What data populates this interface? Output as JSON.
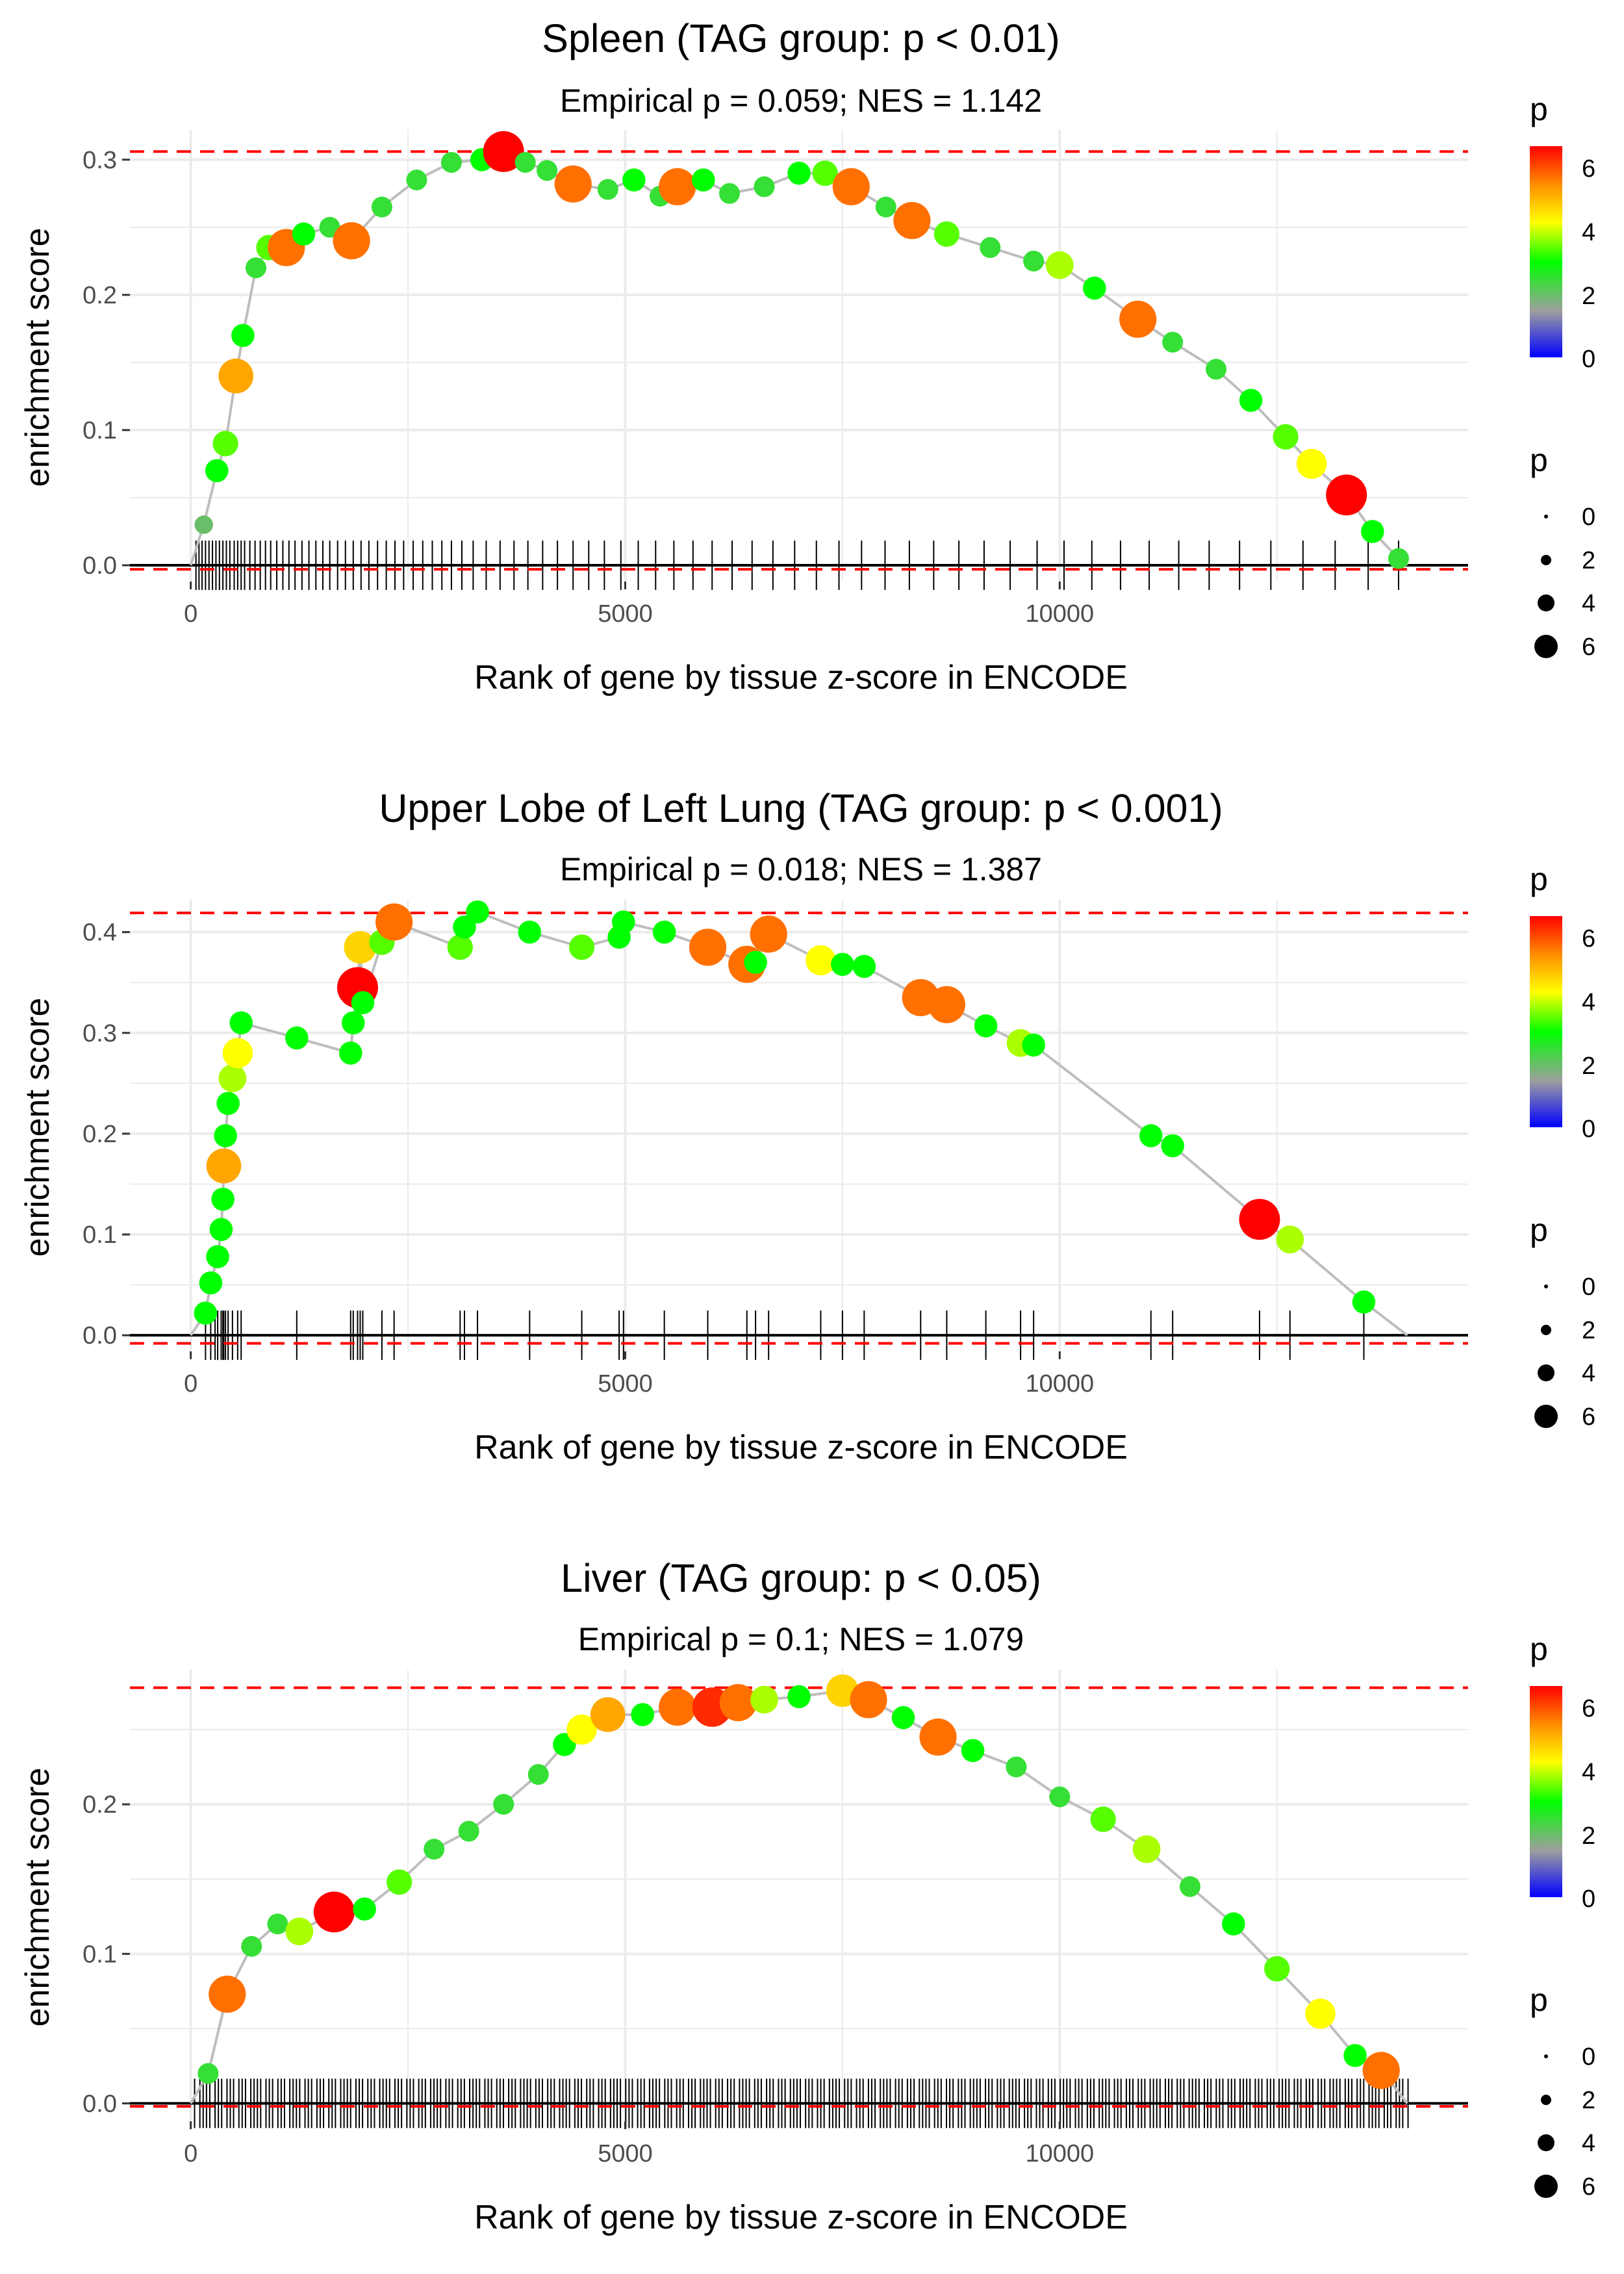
{
  "chart_data": [
    {
      "type": "line",
      "title": "Spleen (TAG group: p < 0.01)",
      "subtitle": "Empirical p = 0.059; NES = 1.142",
      "xlabel": "Rank of gene by tissue z-score in ENCODE",
      "ylabel": "enrichment score",
      "xlim": [
        -700,
        14700
      ],
      "ylim": [
        -0.012,
        0.322
      ],
      "xticks": [
        {
          "value": 0,
          "label": "0"
        },
        {
          "value": 5000,
          "label": "5000"
        },
        {
          "value": 10000,
          "label": "10000"
        }
      ],
      "yticks": [
        {
          "value": 0.0,
          "label": "0.0"
        },
        {
          "value": 0.1,
          "label": "0.1"
        },
        {
          "value": 0.2,
          "label": "0.2"
        },
        {
          "value": 0.3,
          "label": "0.3"
        }
      ],
      "max_es": 0.306,
      "min_es": -0.003,
      "n_genes": 14000,
      "points": [
        [
          150,
          0.03,
          2.0
        ],
        [
          300,
          0.07,
          3.0
        ],
        [
          400,
          0.09,
          3.5
        ],
        [
          520,
          0.14,
          5.5
        ],
        [
          600,
          0.17,
          3.0
        ],
        [
          750,
          0.22,
          2.5
        ],
        [
          900,
          0.235,
          3.5
        ],
        [
          1100,
          0.235,
          6.0
        ],
        [
          1300,
          0.245,
          3.0
        ],
        [
          1600,
          0.25,
          2.5
        ],
        [
          1850,
          0.24,
          6.0
        ],
        [
          2200,
          0.265,
          2.5
        ],
        [
          2600,
          0.285,
          2.5
        ],
        [
          3000,
          0.298,
          2.5
        ],
        [
          3350,
          0.3,
          3.0
        ],
        [
          3600,
          0.306,
          6.8
        ],
        [
          3850,
          0.298,
          2.5
        ],
        [
          4100,
          0.292,
          2.5
        ],
        [
          4400,
          0.282,
          6.0
        ],
        [
          4800,
          0.278,
          2.5
        ],
        [
          5100,
          0.285,
          3.0
        ],
        [
          5400,
          0.273,
          2.5
        ],
        [
          5600,
          0.28,
          6.0
        ],
        [
          5900,
          0.285,
          3.0
        ],
        [
          6200,
          0.275,
          2.5
        ],
        [
          6600,
          0.28,
          2.5
        ],
        [
          7000,
          0.29,
          3.0
        ],
        [
          7300,
          0.29,
          3.5
        ],
        [
          7600,
          0.28,
          6.0
        ],
        [
          8000,
          0.265,
          2.5
        ],
        [
          8300,
          0.255,
          6.0
        ],
        [
          8700,
          0.245,
          3.5
        ],
        [
          9200,
          0.235,
          2.5
        ],
        [
          9700,
          0.225,
          2.5
        ],
        [
          10000,
          0.222,
          4.0
        ],
        [
          10400,
          0.205,
          3.0
        ],
        [
          10900,
          0.182,
          6.0
        ],
        [
          11300,
          0.165,
          2.5
        ],
        [
          11800,
          0.145,
          2.5
        ],
        [
          12200,
          0.122,
          3.0
        ],
        [
          12600,
          0.095,
          3.5
        ],
        [
          12900,
          0.075,
          4.5
        ],
        [
          13300,
          0.052,
          6.8
        ],
        [
          13600,
          0.025,
          3.0
        ],
        [
          13900,
          0.005,
          2.5
        ]
      ],
      "hits": [
        60,
        95,
        130,
        170,
        210,
        250,
        290,
        330,
        370,
        410,
        450,
        500,
        540,
        580,
        620,
        680,
        740,
        800,
        860,
        920,
        990,
        1060,
        1130,
        1200,
        1280,
        1360,
        1440,
        1520,
        1600,
        1690,
        1780,
        1870,
        1960,
        2050,
        2150,
        2250,
        2350,
        2450,
        2560,
        2670,
        2780,
        2890,
        3000,
        3120,
        3250,
        3400,
        3560,
        3720,
        3880,
        4050,
        4220,
        4400,
        4580,
        4760,
        4950,
        5150,
        5350,
        5560,
        5780,
        6000,
        6230,
        6460,
        6700,
        6950,
        7200,
        7460,
        7720,
        7990,
        8270,
        8550,
        8840,
        9130,
        9430,
        9740,
        10050,
        10370,
        10700,
        11030,
        11370,
        11720,
        12070,
        12430,
        12800,
        13170,
        13550,
        13900
      ]
    },
    {
      "type": "line",
      "title": "Upper Lobe of Left Lung (TAG group: p < 0.001)",
      "subtitle": "Empirical p = 0.018; NES = 1.387",
      "xlabel": "Rank of gene by tissue z-score in ENCODE",
      "ylabel": "enrichment score",
      "xlim": [
        -700,
        14700
      ],
      "ylim": [
        -0.016,
        0.432
      ],
      "xticks": [
        {
          "value": 0,
          "label": "0"
        },
        {
          "value": 5000,
          "label": "5000"
        },
        {
          "value": 10000,
          "label": "10000"
        }
      ],
      "yticks": [
        {
          "value": 0.0,
          "label": "0.0"
        },
        {
          "value": 0.1,
          "label": "0.1"
        },
        {
          "value": 0.2,
          "label": "0.2"
        },
        {
          "value": 0.3,
          "label": "0.3"
        },
        {
          "value": 0.4,
          "label": "0.4"
        }
      ],
      "max_es": 0.419,
      "min_es": -0.008,
      "n_genes": 14000,
      "points": [
        [
          170,
          0.022,
          3.0
        ],
        [
          230,
          0.052,
          3.0
        ],
        [
          310,
          0.078,
          3.0
        ],
        [
          350,
          0.105,
          3.0
        ],
        [
          370,
          0.135,
          3.0
        ],
        [
          380,
          0.168,
          5.5
        ],
        [
          400,
          0.198,
          3.0
        ],
        [
          430,
          0.23,
          3.0
        ],
        [
          480,
          0.255,
          4.0
        ],
        [
          540,
          0.28,
          4.5
        ],
        [
          580,
          0.31,
          3.0
        ],
        [
          1220,
          0.295,
          3.0
        ],
        [
          1840,
          0.28,
          3.0
        ],
        [
          1870,
          0.31,
          3.0
        ],
        [
          1920,
          0.345,
          6.8
        ],
        [
          1950,
          0.385,
          5.0
        ],
        [
          1980,
          0.33,
          3.0
        ],
        [
          2200,
          0.39,
          3.5
        ],
        [
          2340,
          0.41,
          6.0
        ],
        [
          3100,
          0.385,
          3.5
        ],
        [
          3150,
          0.405,
          3.0
        ],
        [
          3300,
          0.42,
          3.0
        ],
        [
          3900,
          0.4,
          3.0
        ],
        [
          4500,
          0.385,
          3.5
        ],
        [
          4930,
          0.395,
          3.0
        ],
        [
          4980,
          0.41,
          3.0
        ],
        [
          5450,
          0.4,
          3.0
        ],
        [
          5950,
          0.385,
          6.0
        ],
        [
          6400,
          0.368,
          6.0
        ],
        [
          6500,
          0.37,
          3.0
        ],
        [
          6650,
          0.398,
          6.0
        ],
        [
          7250,
          0.372,
          4.5
        ],
        [
          7500,
          0.368,
          3.0
        ],
        [
          7750,
          0.366,
          3.0
        ],
        [
          8400,
          0.335,
          6.0
        ],
        [
          8700,
          0.328,
          6.0
        ],
        [
          9150,
          0.307,
          3.0
        ],
        [
          9550,
          0.29,
          4.0
        ],
        [
          9700,
          0.288,
          3.0
        ],
        [
          11050,
          0.198,
          3.0
        ],
        [
          11300,
          0.188,
          3.0
        ],
        [
          12300,
          0.115,
          6.8
        ],
        [
          12650,
          0.095,
          4.0
        ],
        [
          13500,
          0.033,
          3.0
        ]
      ],
      "hits": [
        170,
        230,
        280,
        310,
        350,
        370,
        380,
        400,
        430,
        480,
        540,
        580,
        1220,
        1840,
        1870,
        1920,
        1950,
        1980,
        2200,
        2340,
        3100,
        3150,
        3300,
        3900,
        4500,
        4930,
        4980,
        5450,
        5950,
        6400,
        6500,
        6650,
        7250,
        7500,
        7750,
        8400,
        8700,
        9150,
        9550,
        9700,
        11050,
        11300,
        12300,
        12650,
        13500
      ]
    },
    {
      "type": "line",
      "title": "Liver (TAG group: p < 0.05)",
      "subtitle": "Empirical p = 0.1; NES = 1.079",
      "xlabel": "Rank of gene by tissue z-score in ENCODE",
      "ylabel": "enrichment score",
      "xlim": [
        -700,
        14700
      ],
      "ylim": [
        -0.012,
        0.29
      ],
      "xticks": [
        {
          "value": 0,
          "label": "0"
        },
        {
          "value": 5000,
          "label": "5000"
        },
        {
          "value": 10000,
          "label": "10000"
        }
      ],
      "yticks": [
        {
          "value": 0.0,
          "label": "0.0"
        },
        {
          "value": 0.1,
          "label": "0.1"
        },
        {
          "value": 0.2,
          "label": "0.2"
        }
      ],
      "max_es": 0.278,
      "min_es": -0.002,
      "n_genes": 14000,
      "points": [
        [
          200,
          0.02,
          2.5
        ],
        [
          420,
          0.073,
          6.0
        ],
        [
          700,
          0.105,
          2.5
        ],
        [
          1000,
          0.12,
          2.5
        ],
        [
          1250,
          0.115,
          4.0
        ],
        [
          1650,
          0.128,
          6.8
        ],
        [
          2000,
          0.13,
          3.0
        ],
        [
          2400,
          0.148,
          3.5
        ],
        [
          2800,
          0.17,
          2.5
        ],
        [
          3200,
          0.182,
          2.5
        ],
        [
          3600,
          0.2,
          2.5
        ],
        [
          4000,
          0.22,
          2.5
        ],
        [
          4300,
          0.24,
          3.0
        ],
        [
          4500,
          0.25,
          4.5
        ],
        [
          4800,
          0.26,
          5.5
        ],
        [
          5200,
          0.26,
          3.0
        ],
        [
          5600,
          0.265,
          6.0
        ],
        [
          6000,
          0.265,
          6.5
        ],
        [
          6300,
          0.268,
          6.0
        ],
        [
          6600,
          0.27,
          4.0
        ],
        [
          7000,
          0.272,
          3.0
        ],
        [
          7500,
          0.276,
          5.0
        ],
        [
          7800,
          0.27,
          6.0
        ],
        [
          8200,
          0.258,
          3.0
        ],
        [
          8600,
          0.245,
          6.0
        ],
        [
          9000,
          0.236,
          3.0
        ],
        [
          9500,
          0.225,
          2.5
        ],
        [
          10000,
          0.205,
          2.5
        ],
        [
          10500,
          0.19,
          3.5
        ],
        [
          11000,
          0.17,
          4.0
        ],
        [
          11500,
          0.145,
          2.5
        ],
        [
          12000,
          0.12,
          3.0
        ],
        [
          12500,
          0.09,
          3.5
        ],
        [
          13000,
          0.06,
          4.5
        ],
        [
          13400,
          0.032,
          3.0
        ],
        [
          13700,
          0.022,
          6.0
        ]
      ],
      "hits": [],
      "hits_dense": {
        "start": 50,
        "end": 14000,
        "step": 45
      }
    }
  ],
  "colorbar_legend": {
    "title": "p",
    "labels": [
      "6",
      "4",
      "2",
      "0"
    ],
    "colors": [
      "#ff0000",
      "#ffff00",
      "#00ff00",
      "#9e9e9e",
      "#0000ff"
    ]
  },
  "size_legend": {
    "title": "p",
    "labels": [
      "0",
      "2",
      "4",
      "6"
    ]
  },
  "colors": {
    "ref_line": "#ff0000",
    "es_line": "#bebebe",
    "axis_line": "#000000",
    "grid": "#ebebeb",
    "hit_tick": "#000000"
  }
}
